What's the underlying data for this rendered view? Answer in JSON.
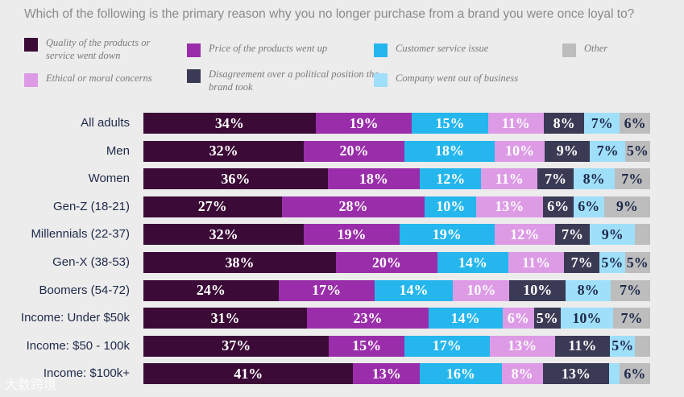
{
  "chart_data": {
    "type": "stacked-bar-horizontal",
    "title": "Which of the following is the primary reason why you no longer purchase from a brand you were once loyal to?",
    "legend": [
      {
        "label": "Quality of the products or service went down",
        "color": "#3b0a36"
      },
      {
        "label": "Price of the products went up",
        "color": "#9a2eaa"
      },
      {
        "label": "Customer service issue",
        "color": "#25b6ee"
      },
      {
        "label": "Other",
        "color": "#bdbdbd"
      },
      {
        "label": "Ethical or moral concerns",
        "color": "#dd9be6"
      },
      {
        "label": "Disagreement over a political position the brand took",
        "color": "#3a3a55"
      },
      {
        "label": "Company went out of business",
        "color": "#9fdffa"
      }
    ],
    "series_order": [
      "Quality of the products or service went down",
      "Price of the products went up",
      "Customer service issue",
      "Ethical or moral concerns",
      "Disagreement over a political position the brand took",
      "Company went out of business",
      "Other"
    ],
    "categories": [
      "All adults",
      "Men",
      "Women",
      "Gen-Z (18-21)",
      "Millennials (22-37)",
      "Gen-X (38-53)",
      "Boomers (54-72)",
      "Income: Under $50k",
      "Income: $50 - 100k",
      "Income: $100k+"
    ],
    "values": [
      [
        34,
        19,
        15,
        11,
        8,
        7,
        6
      ],
      [
        32,
        20,
        18,
        10,
        9,
        7,
        5
      ],
      [
        36,
        18,
        12,
        11,
        7,
        8,
        7
      ],
      [
        27,
        28,
        10,
        13,
        6,
        6,
        9
      ],
      [
        32,
        19,
        19,
        12,
        7,
        9,
        3
      ],
      [
        38,
        20,
        14,
        11,
        7,
        5,
        5
      ],
      [
        24,
        17,
        14,
        10,
        10,
        8,
        7
      ],
      [
        31,
        23,
        14,
        6,
        5,
        10,
        7
      ],
      [
        37,
        15,
        17,
        13,
        11,
        5,
        3
      ],
      [
        41,
        13,
        16,
        8,
        13,
        2,
        6
      ]
    ],
    "labels": [
      [
        "34%",
        "19%",
        "15%",
        "11%",
        "8%",
        "7%",
        "6%"
      ],
      [
        "32%",
        "20%",
        "18%",
        "10%",
        "9%",
        "7%",
        "5%"
      ],
      [
        "36%",
        "18%",
        "12%",
        "11%",
        "7%",
        "8%",
        "7%"
      ],
      [
        "27%",
        "28%",
        "10%",
        "13%",
        "6%",
        "6%",
        "9%"
      ],
      [
        "32%",
        "19%",
        "19%",
        "12%",
        "7%",
        "9%",
        ""
      ],
      [
        "38%",
        "20%",
        "14%",
        "11%",
        "7%",
        "5%",
        "5%"
      ],
      [
        "24%",
        "17%",
        "14%",
        "10%",
        "10%",
        "8%",
        "7%"
      ],
      [
        "31%",
        "23%",
        "14%",
        "6%",
        "5%",
        "10%",
        "7%"
      ],
      [
        "37%",
        "15%",
        "17%",
        "13%",
        "11%",
        "5%",
        ""
      ],
      [
        "41%",
        "13%",
        "16%",
        "8%",
        "13%",
        "",
        "6%"
      ]
    ],
    "label_colors": [
      "#ffffff",
      "#ffffff",
      "#ffffff",
      "#ffffff",
      "#ffffff",
      "#1f2a4a",
      "#1f2a4a"
    ],
    "xlim": [
      0,
      100
    ]
  },
  "watermark": "大数跨境"
}
